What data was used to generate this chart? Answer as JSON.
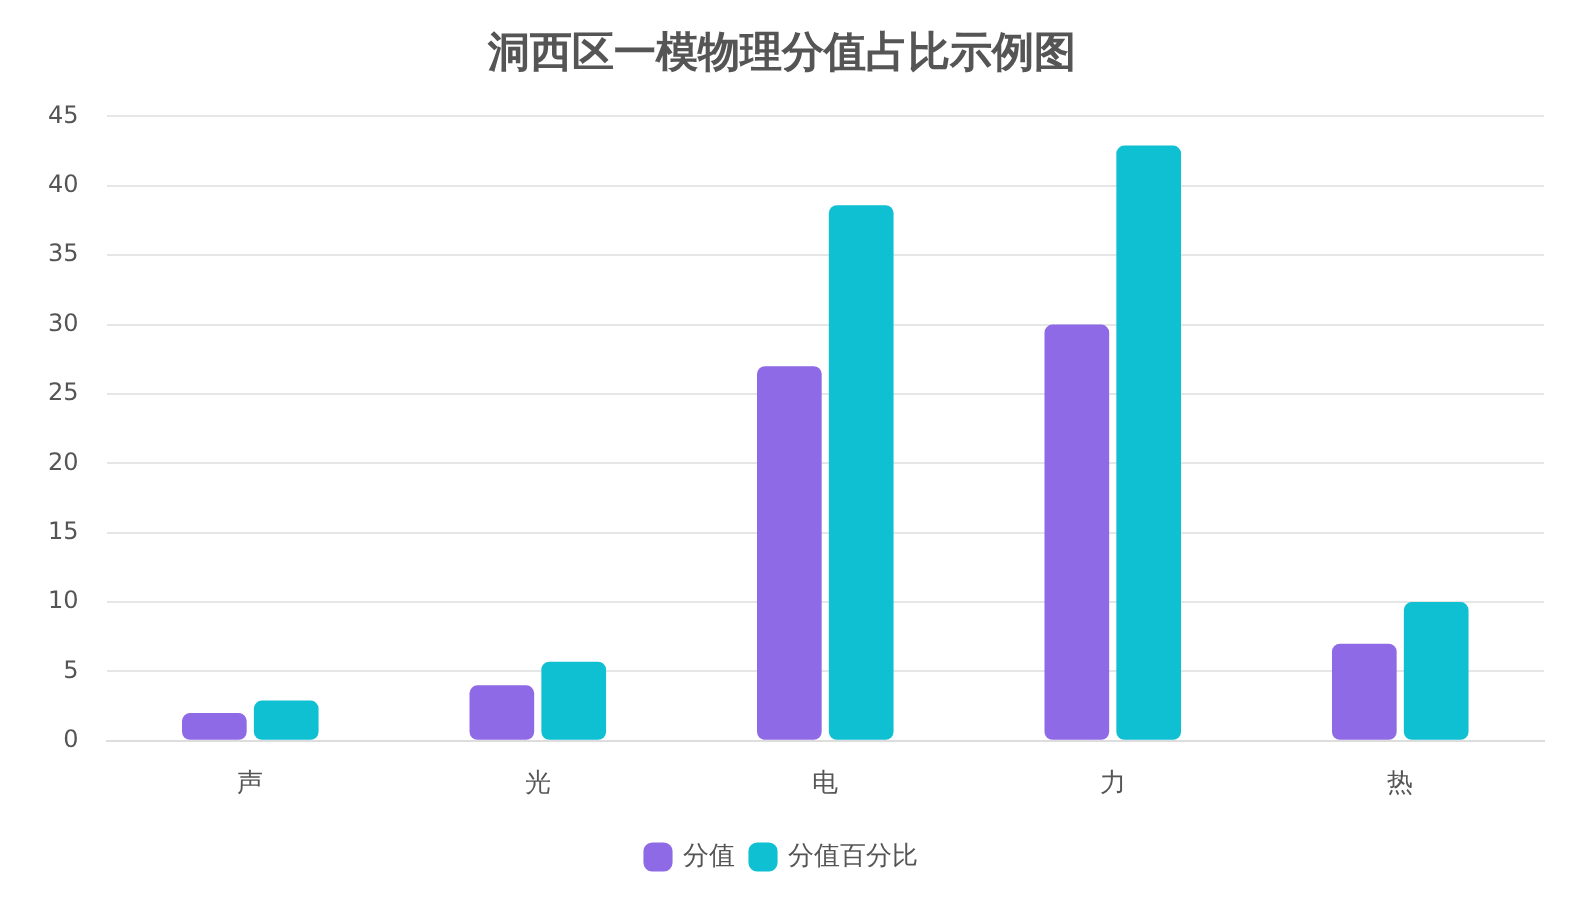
{
  "chart_data": {
    "type": "bar",
    "title": "洞西区一模物理分值占比示例图",
    "categories": [
      "声",
      "光",
      "电",
      "力",
      "热"
    ],
    "series": [
      {
        "name": "分值",
        "color": "#8f6ae6",
        "values": [
          2,
          4,
          27,
          30,
          7
        ]
      },
      {
        "name": "分值百分比",
        "color": "#0fbfd2",
        "values": [
          2.9,
          5.7,
          38.6,
          42.9,
          10
        ]
      }
    ],
    "ylim": [
      0,
      45
    ],
    "yticks": [
      0,
      5,
      10,
      15,
      20,
      25,
      30,
      35,
      40,
      45
    ],
    "grid": "y",
    "legend": "bottom"
  }
}
